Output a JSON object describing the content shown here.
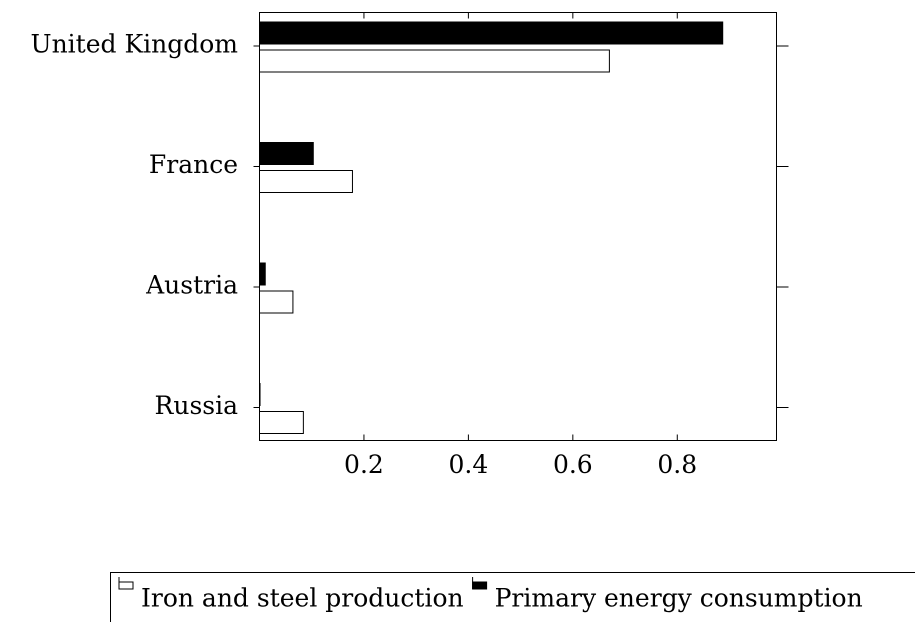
{
  "chart_data": {
    "type": "hbar",
    "categories": [
      "United Kingdom",
      "France",
      "Austria",
      "Russia"
    ],
    "series": [
      {
        "name": "Iron and steel production",
        "color": "#ffffff",
        "values": [
          0.67,
          0.178,
          0.064,
          0.084
        ]
      },
      {
        "name": "Primary energy consumption",
        "color": "#000000",
        "values": [
          0.887,
          0.103,
          0.011,
          0.001
        ]
      }
    ],
    "xlim": [
      0,
      0.99
    ],
    "xticks": [
      0.2,
      0.4,
      0.6,
      0.8
    ]
  }
}
